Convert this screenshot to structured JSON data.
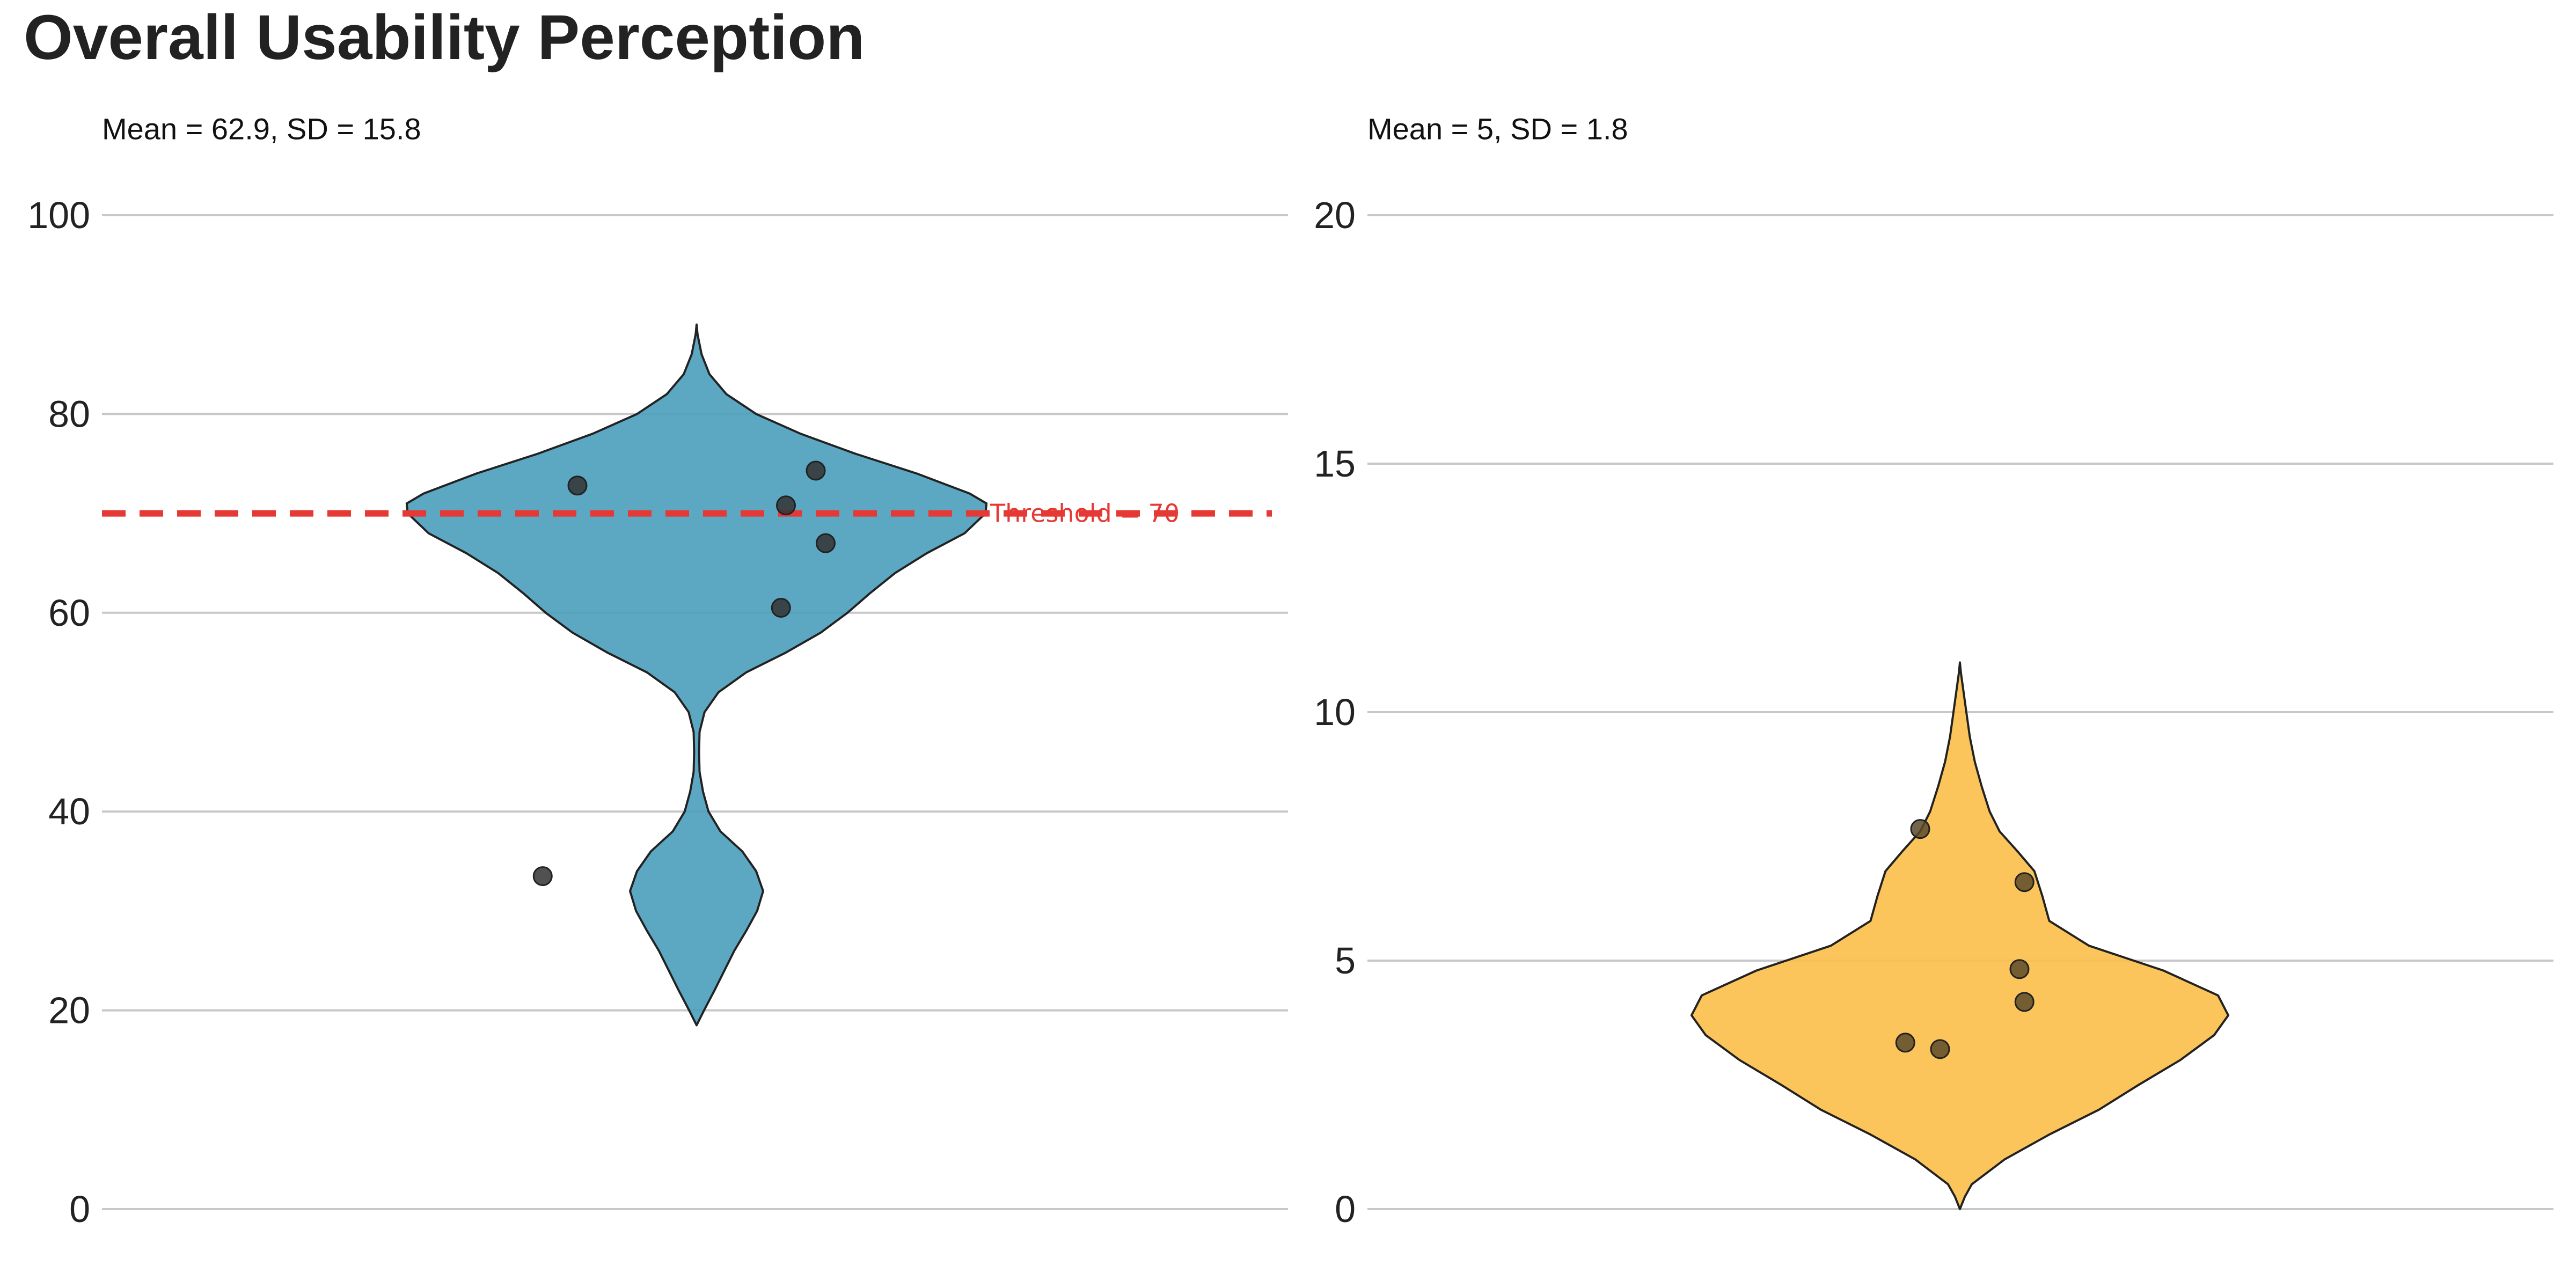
{
  "title": "Overall Usability Perception",
  "chart_data": [
    {
      "type": "violin",
      "subtitle": "Mean = 62.9, SD = 15.8",
      "ylim": [
        0,
        100
      ],
      "yticks": [
        0,
        20,
        40,
        60,
        80,
        100
      ],
      "tick_labels": [
        "0",
        "20",
        "40",
        "60",
        "80",
        "100"
      ],
      "grid": "horizontal",
      "fill_color": "#4a9fbc",
      "point_color": "#333333",
      "distribution_range": [
        18.5,
        89
      ],
      "points": [
        {
          "jitter": -0.12,
          "value": 72.8
        },
        {
          "jitter": 0.12,
          "value": 74.3
        },
        {
          "jitter": 0.09,
          "value": 70.8
        },
        {
          "jitter": 0.13,
          "value": 67.0
        },
        {
          "jitter": 0.085,
          "value": 60.5
        },
        {
          "jitter": -0.155,
          "value": 33.5
        }
      ],
      "threshold": {
        "value": 70,
        "label": "Threshold = 70",
        "color": "#e53935"
      }
    },
    {
      "type": "violin",
      "subtitle": "Mean = 5, SD = 1.8",
      "ylim": [
        0,
        20
      ],
      "yticks": [
        0,
        5,
        10,
        15,
        20
      ],
      "tick_labels": [
        "0",
        "5",
        "10",
        "15",
        "20"
      ],
      "grid": "horizontal",
      "fill_color": "#fcbf49",
      "point_color": "#5a4a2a",
      "distribution_range": [
        0,
        11
      ],
      "points": [
        {
          "jitter": -0.04,
          "value": 7.65
        },
        {
          "jitter": 0.065,
          "value": 6.58
        },
        {
          "jitter": 0.06,
          "value": 4.83
        },
        {
          "jitter": 0.065,
          "value": 4.17
        },
        {
          "jitter": -0.055,
          "value": 3.35
        },
        {
          "jitter": -0.02,
          "value": 3.22
        }
      ]
    }
  ]
}
